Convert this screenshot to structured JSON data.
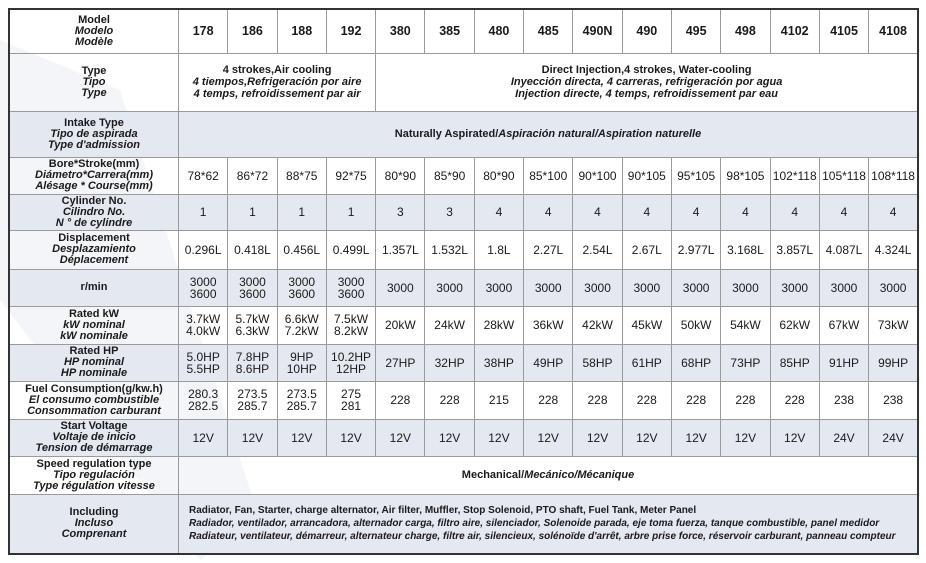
{
  "models": {
    "label": [
      "Model",
      "Modelo",
      "Modèle"
    ],
    "values": [
      "178",
      "186",
      "188",
      "192",
      "380",
      "385",
      "480",
      "485",
      "490N",
      "490",
      "495",
      "498",
      "4102",
      "4105",
      "4108"
    ]
  },
  "type": {
    "label": [
      "Type",
      "Tipo",
      "Type"
    ],
    "air": [
      "4 strokes,Air cooling",
      "4 tiempos,Refrigeración por aire",
      "4 temps, refroidissement par air"
    ],
    "water": [
      "Direct Injection,4 strokes, Water-cooling",
      "Inyección directa, 4 carreras, refrigeración por agua",
      "Injection directe, 4 temps, refroidissement par eau"
    ]
  },
  "intake": {
    "label": [
      "Intake Type",
      "Tipo de aspirada",
      "Type d'admission"
    ],
    "value_en": "Naturally Aspirated/",
    "value_es": "Aspiración natural/",
    "value_fr": "Aspiration naturelle"
  },
  "rows": [
    {
      "label": [
        "Bore*Stroke(mm)",
        "Diámetro*Carrera(mm)",
        "Alésage * Course(mm)"
      ],
      "values": [
        "78*62",
        "86*72",
        "88*75",
        "92*75",
        "80*90",
        "85*90",
        "80*90",
        "85*100",
        "90*100",
        "90*105",
        "95*105",
        "98*105",
        "102*118",
        "105*118",
        "108*118"
      ]
    },
    {
      "label": [
        "Cylinder No.",
        "Cilindro No.",
        "N ° de cylindre"
      ],
      "values": [
        "1",
        "1",
        "1",
        "1",
        "3",
        "3",
        "4",
        "4",
        "4",
        "4",
        "4",
        "4",
        "4",
        "4",
        "4"
      ]
    },
    {
      "label": [
        "Displacement",
        "Desplazamiento",
        "Déplacement"
      ],
      "values": [
        "0.296L",
        "0.418L",
        "0.456L",
        "0.499L",
        "1.357L",
        "1.532L",
        "1.8L",
        "2.27L",
        "2.54L",
        "2.67L",
        "2.977L",
        "3.168L",
        "3.857L",
        "4.087L",
        "4.324L"
      ]
    },
    {
      "label": [
        "r/min"
      ],
      "values": [
        [
          "3000",
          "3600"
        ],
        [
          "3000",
          "3600"
        ],
        [
          "3000",
          "3600"
        ],
        [
          "3000",
          "3600"
        ],
        "3000",
        "3000",
        "3000",
        "3000",
        "3000",
        "3000",
        "3000",
        "3000",
        "3000",
        "3000",
        "3000"
      ]
    },
    {
      "label": [
        "Rated kW",
        "kW nominal",
        "kW nominale"
      ],
      "values": [
        [
          "3.7kW",
          "4.0kW"
        ],
        [
          "5.7kW",
          "6.3kW"
        ],
        [
          "6.6kW",
          "7.2kW"
        ],
        [
          "7.5kW",
          "8.2kW"
        ],
        "20kW",
        "24kW",
        "28kW",
        "36kW",
        "42kW",
        "45kW",
        "50kW",
        "54kW",
        "62kW",
        "67kW",
        "73kW"
      ]
    },
    {
      "label": [
        "Rated HP",
        "HP nominal",
        "HP nominale"
      ],
      "values": [
        [
          "5.0HP",
          "5.5HP"
        ],
        [
          "7.8HP",
          "8.6HP"
        ],
        [
          "9HP",
          "10HP"
        ],
        [
          "10.2HP",
          "12HP"
        ],
        "27HP",
        "32HP",
        "38HP",
        "49HP",
        "58HP",
        "61HP",
        "68HP",
        "73HP",
        "85HP",
        "91HP",
        "99HP"
      ]
    },
    {
      "label": [
        "Fuel Consumption(g/kw.h)",
        "El consumo combustible",
        "Consommation carburant"
      ],
      "values": [
        [
          "280.3",
          "282.5"
        ],
        [
          "273.5",
          "285.7"
        ],
        [
          "273.5",
          "285.7"
        ],
        [
          "275",
          "281"
        ],
        "228",
        "228",
        "215",
        "228",
        "228",
        "228",
        "228",
        "228",
        "228",
        "238",
        "238"
      ]
    },
    {
      "label": [
        "Start Voltage",
        "Voltaje de inicio",
        "Tension de démarrage"
      ],
      "values": [
        "12V",
        "12V",
        "12V",
        "12V",
        "12V",
        "12V",
        "12V",
        "12V",
        "12V",
        "12V",
        "12V",
        "12V",
        "12V",
        "24V",
        "24V"
      ]
    }
  ],
  "speed": {
    "label": [
      "Speed regulation type",
      "Tipo regulación",
      "Type régulation vitesse"
    ],
    "value_en": "Mechanical/",
    "value_es": "Mecánico/",
    "value_fr": "Mécanique"
  },
  "including": {
    "label": [
      "Including",
      "Incluso",
      "Comprenant"
    ],
    "lines": [
      "Radiator, Fan, Starter, charge alternator, Air filter, Muffler, Stop Solenoid, PTO shaft, Fuel Tank, Meter Panel",
      "Radiador, ventilador, arrancadora, alternador carga, filtro aire, silenciador, Solenoide parada, eje toma fuerza, tanque combustible, panel medidor",
      "Radiateur, ventilateur, démarreur, alternateur charge, filtre air, silencieux, solénoïde d'arrêt, arbre prise force, réservoir carburant, panneau compteur"
    ]
  },
  "colors": {
    "row_shade": "#e4e8f0",
    "border": "#333333"
  }
}
